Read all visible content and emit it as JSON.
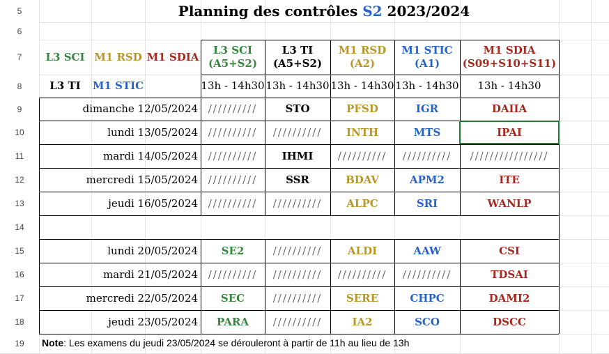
{
  "title": {
    "part1": "Planning des contrôles ",
    "semester": "S2",
    "part2": " 2023/2024"
  },
  "row_numbers": [
    "5",
    "6",
    "7",
    "8",
    "9",
    "10",
    "11",
    "12",
    "13",
    "14",
    "15",
    "16",
    "17",
    "18",
    "19"
  ],
  "legend": {
    "l3_sci": "L3 SCI",
    "m1_rsd": "M1 RSD",
    "m1_sdia": "M1 SDIA",
    "l3_ti": "L3 TI",
    "m1_stic": "M1 STIC"
  },
  "columns": [
    {
      "name": "L3 SCI",
      "room": "(A5+S2)",
      "time": "13h - 14h30"
    },
    {
      "name": "L3 TI",
      "room": "(A5+S2)",
      "time": "13h - 14h30"
    },
    {
      "name": "M1 RSD",
      "room": "(A2)",
      "time": "13h - 14h30"
    },
    {
      "name": "M1 STIC",
      "room": "(A1)",
      "time": "13h - 14h30"
    },
    {
      "name": "M1 SDIA",
      "room": "(S09+S10+S11)",
      "time": "13h - 14h30"
    }
  ],
  "slash": "//////////",
  "slash_wide": "////////////////",
  "rows": [
    {
      "date": "dimanche 12/05/2024",
      "cells": [
        "//////////",
        "STO",
        "PFSD",
        "IGR",
        "DAIIA"
      ]
    },
    {
      "date": "lundi 13/05/2024",
      "cells": [
        "//////////",
        "//////////",
        "INTH",
        "MTS",
        "IPAI"
      ]
    },
    {
      "date": "mardi 14/05/2024",
      "cells": [
        "//////////",
        "IHMI",
        "//////////",
        "//////////",
        "////////////////"
      ]
    },
    {
      "date": "mercredi 15/05/2024",
      "cells": [
        "//////////",
        "SSR",
        "BDAV",
        "APM2",
        "ITE"
      ]
    },
    {
      "date": "jeudi 16/05/2024",
      "cells": [
        "//////////",
        "//////////",
        "ALPC",
        "SRI",
        "WANLP"
      ]
    },
    {
      "date": "lundi 20/05/2024",
      "cells": [
        "SE2",
        "//////////",
        "ALDI",
        "AAW",
        "CSI"
      ]
    },
    {
      "date": "mardi 21/05/2024",
      "cells": [
        "//////////",
        "//////////",
        "//////////",
        "//////////",
        "TDSAI"
      ]
    },
    {
      "date": "mercredi 22/05/2024",
      "cells": [
        "SEC",
        "//////////",
        "SERE",
        "CHPC",
        "DAMI2"
      ]
    },
    {
      "date": "jeudi 23/05/2024",
      "cells": [
        "PARA",
        "//////////",
        "IA2",
        "SCO",
        "DSCC"
      ]
    }
  ],
  "note": {
    "label": "Note",
    "text": ": Les examens du jeudi 23/05/2024 se dérouleront à partir de 11h au lieu de 13h"
  },
  "colors": {
    "green": "#38853b",
    "gold": "#b8962a",
    "red": "#a52a1e",
    "blue": "#2563c9",
    "selection": "#1e7b34",
    "gridline": "#e2e3e3"
  }
}
